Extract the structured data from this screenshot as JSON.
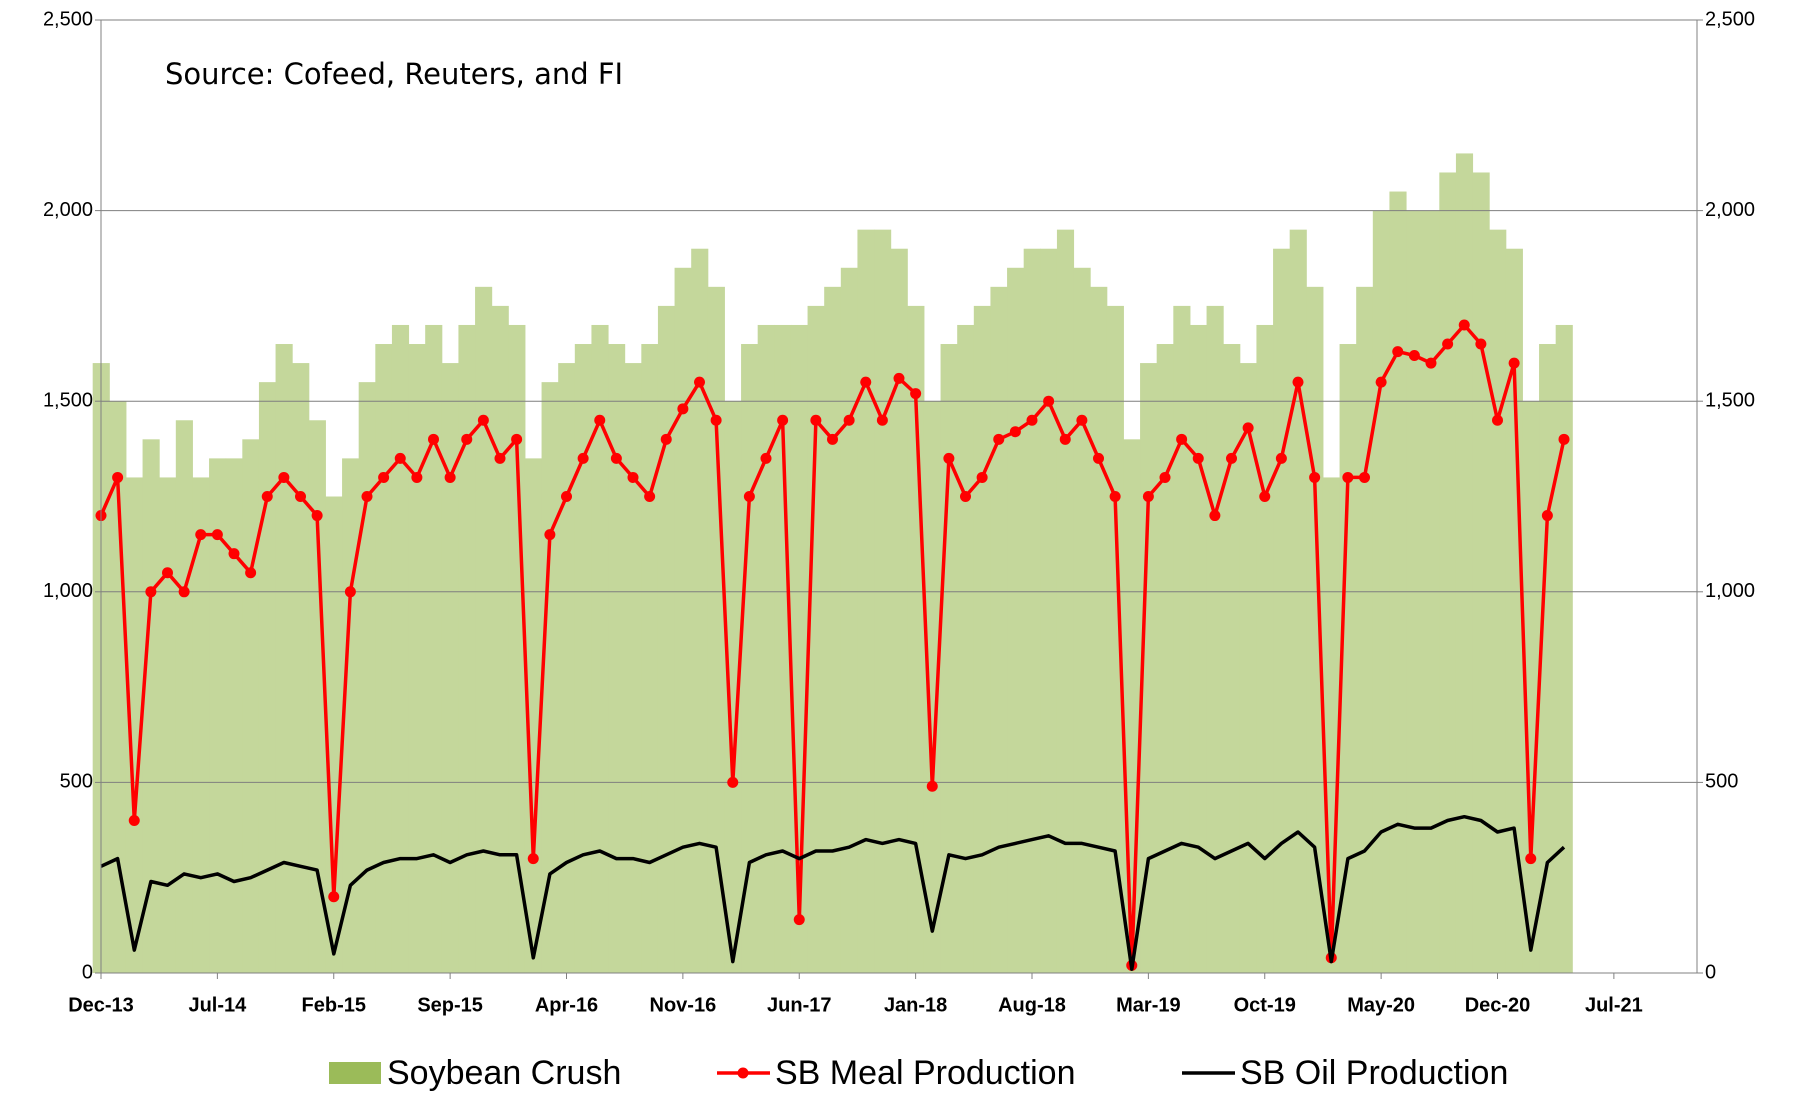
{
  "chart_data": {
    "type": "bar-line",
    "annotation": "Source: Cofeed, Reuters, and FI",
    "x": [
      "Dec-13",
      "Jan-14",
      "Feb-14",
      "Mar-14",
      "Apr-14",
      "May-14",
      "Jun-14",
      "Jul-14",
      "Aug-14",
      "Sep-14",
      "Oct-14",
      "Nov-14",
      "Dec-14",
      "Jan-15",
      "Feb-15",
      "Mar-15",
      "Apr-15",
      "May-15",
      "Jun-15",
      "Jul-15",
      "Aug-15",
      "Sep-15",
      "Oct-15",
      "Nov-15",
      "Dec-15",
      "Jan-16",
      "Feb-16",
      "Mar-16",
      "Apr-16",
      "May-16",
      "Jun-16",
      "Jul-16",
      "Aug-16",
      "Sep-16",
      "Oct-16",
      "Nov-16",
      "Dec-16",
      "Jan-17",
      "Feb-17",
      "Mar-17",
      "Apr-17",
      "May-17",
      "Jun-17",
      "Jul-17",
      "Aug-17",
      "Sep-17",
      "Oct-17",
      "Nov-17",
      "Dec-17",
      "Jan-18",
      "Feb-18",
      "Mar-18",
      "Apr-18",
      "May-18",
      "Jun-18",
      "Jul-18",
      "Aug-18",
      "Sep-18",
      "Oct-18",
      "Nov-18",
      "Dec-18",
      "Jan-19",
      "Feb-19",
      "Mar-19",
      "Apr-19",
      "May-19",
      "Jun-19",
      "Jul-19",
      "Aug-19",
      "Sep-19",
      "Oct-19",
      "Nov-19",
      "Dec-19",
      "Jan-20",
      "Feb-20",
      "Mar-20",
      "Apr-20",
      "May-20",
      "Jun-20",
      "Jul-20",
      "Aug-20",
      "Sep-20",
      "Oct-20",
      "Nov-20",
      "Dec-20",
      "Jan-21",
      "Feb-21",
      "Mar-21",
      "Apr-21"
    ],
    "series": [
      {
        "name": "Soybean Crush",
        "type": "bar",
        "color": "#c4d79b",
        "legend_color": "#9bbb59",
        "values": [
          1600,
          1500,
          1300,
          1400,
          1300,
          1450,
          1300,
          1350,
          1350,
          1400,
          1550,
          1650,
          1600,
          1450,
          1250,
          1350,
          1550,
          1650,
          1700,
          1650,
          1700,
          1600,
          1700,
          1800,
          1750,
          1700,
          1350,
          1550,
          1600,
          1650,
          1700,
          1650,
          1600,
          1650,
          1750,
          1850,
          1900,
          1800,
          1500,
          1650,
          1700,
          1700,
          1700,
          1750,
          1800,
          1850,
          1950,
          1950,
          1900,
          1750,
          1500,
          1650,
          1700,
          1750,
          1800,
          1850,
          1900,
          1900,
          1950,
          1850,
          1800,
          1750,
          1400,
          1600,
          1650,
          1750,
          1700,
          1750,
          1650,
          1600,
          1700,
          1900,
          1950,
          1800,
          1300,
          1650,
          1800,
          2000,
          2050,
          2000,
          2000,
          2100,
          2150,
          2100,
          1950,
          1900,
          1500,
          1650,
          1700
        ]
      },
      {
        "name": "SB Meal Production",
        "type": "line",
        "marker": true,
        "color": "#ff0000",
        "values": [
          1200,
          1300,
          400,
          1000,
          1050,
          1000,
          1150,
          1150,
          1100,
          1050,
          1250,
          1300,
          1250,
          1200,
          200,
          1000,
          1250,
          1300,
          1350,
          1300,
          1400,
          1300,
          1400,
          1450,
          1350,
          1400,
          300,
          1150,
          1250,
          1350,
          1450,
          1350,
          1300,
          1250,
          1400,
          1480,
          1550,
          1450,
          500,
          1250,
          1350,
          1450,
          140,
          1450,
          1400,
          1450,
          1550,
          1450,
          1560,
          1520,
          490,
          1350,
          1250,
          1300,
          1400,
          1420,
          1450,
          1500,
          1400,
          1450,
          1350,
          1250,
          20,
          1250,
          1300,
          1400,
          1350,
          1200,
          1350,
          1430,
          1250,
          1350,
          1550,
          1300,
          40,
          1300,
          1300,
          1550,
          1630,
          1620,
          1600,
          1650,
          1700,
          1650,
          1450,
          1600,
          300,
          1200,
          1400
        ]
      },
      {
        "name": "SB Oil Production",
        "type": "line",
        "marker": false,
        "color": "#000000",
        "values": [
          280,
          300,
          60,
          240,
          230,
          260,
          250,
          260,
          240,
          250,
          270,
          290,
          280,
          270,
          50,
          230,
          270,
          290,
          300,
          300,
          310,
          290,
          310,
          320,
          310,
          310,
          40,
          260,
          290,
          310,
          320,
          300,
          300,
          290,
          310,
          330,
          340,
          330,
          30,
          290,
          310,
          320,
          300,
          320,
          320,
          330,
          350,
          340,
          350,
          340,
          110,
          310,
          300,
          310,
          330,
          340,
          350,
          360,
          340,
          340,
          330,
          320,
          10,
          300,
          320,
          340,
          330,
          300,
          320,
          340,
          300,
          340,
          370,
          330,
          30,
          300,
          320,
          370,
          390,
          380,
          380,
          400,
          410,
          400,
          370,
          380,
          60,
          290,
          330
        ]
      }
    ],
    "xlim": [
      "Dec-13",
      "Dec-21"
    ],
    "xticks": [
      "Dec-13",
      "Jul-14",
      "Feb-15",
      "Sep-15",
      "Apr-16",
      "Nov-16",
      "Jun-17",
      "Jan-18",
      "Aug-18",
      "Mar-19",
      "Oct-19",
      "May-20",
      "Dec-20",
      "Jul-21"
    ],
    "ylim": [
      0,
      2500
    ],
    "yticks": [
      0,
      500,
      {
        "value": 1000,
        "label": "1,000"
      },
      {
        "value": 1500,
        "label": "1,500"
      },
      {
        "value": 2000,
        "label": "2,000"
      },
      {
        "value": 2500,
        "label": "2,500"
      }
    ],
    "y2lim": [
      0,
      2500
    ],
    "y2ticks": [
      0,
      500,
      {
        "value": 1000,
        "label": "1,000"
      },
      {
        "value": 1500,
        "label": "1,500"
      },
      {
        "value": 2000,
        "label": "2,000"
      },
      {
        "value": 2500,
        "label": "2,500"
      }
    ],
    "grid": true,
    "legend": "bottom"
  }
}
